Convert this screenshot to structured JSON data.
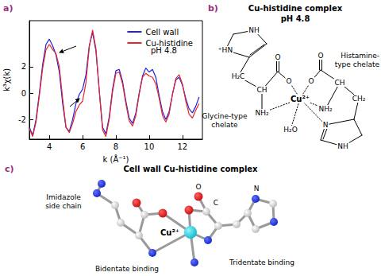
{
  "chart_data": {
    "type": "line",
    "panel_label": "a)",
    "xlabel": "k (Å⁻¹)",
    "ylabel": "k³χ(k)",
    "x": [
      2.8,
      3.0,
      3.2,
      3.4,
      3.6,
      3.8,
      4.0,
      4.2,
      4.4,
      4.6,
      4.8,
      5.0,
      5.2,
      5.4,
      5.6,
      5.8,
      6.0,
      6.2,
      6.4,
      6.6,
      6.8,
      7.0,
      7.2,
      7.4,
      7.6,
      7.8,
      8.0,
      8.2,
      8.4,
      8.6,
      8.8,
      9.0,
      9.2,
      9.4,
      9.6,
      9.8,
      10.0,
      10.2,
      10.4,
      10.6,
      10.8,
      11.0,
      11.2,
      11.4,
      11.6,
      11.8,
      12.0,
      12.2,
      12.4,
      12.6,
      12.8,
      13.0
    ],
    "series": [
      {
        "name": "Cell wall",
        "color": "#2222dd",
        "values": [
          -2.6,
          -3.2,
          -2.0,
          0.0,
          2.2,
          3.7,
          4.1,
          3.6,
          2.9,
          1.6,
          -0.8,
          -2.6,
          -2.9,
          -2.0,
          -0.8,
          -0.1,
          0.3,
          1.4,
          3.6,
          4.6,
          3.2,
          0.2,
          -2.6,
          -3.1,
          -1.8,
          0.3,
          1.7,
          1.8,
          0.9,
          -0.6,
          -1.9,
          -2.3,
          -1.5,
          0.0,
          1.3,
          1.9,
          1.6,
          1.8,
          1.2,
          -0.2,
          -1.4,
          -2.0,
          -1.4,
          -0.1,
          1.0,
          1.2,
          0.6,
          -0.4,
          -1.2,
          -1.5,
          -1.0,
          -0.3
        ]
      },
      {
        "name": "Cu-histidine",
        "color": "#e8252a",
        "values": [
          -2.7,
          -3.3,
          -2.2,
          -0.2,
          1.9,
          3.3,
          3.7,
          3.3,
          3.0,
          2.0,
          -0.4,
          -2.6,
          -3.0,
          -2.3,
          -1.4,
          -0.9,
          -0.6,
          0.8,
          3.5,
          4.8,
          3.4,
          0.2,
          -2.8,
          -3.3,
          -2.0,
          0.1,
          1.5,
          1.6,
          0.7,
          -0.8,
          -2.1,
          -2.5,
          -1.7,
          -0.1,
          1.2,
          1.5,
          1.3,
          1.2,
          0.7,
          -0.4,
          -1.7,
          -2.2,
          -1.6,
          -0.1,
          1.1,
          1.4,
          0.7,
          -0.6,
          -1.6,
          -1.9,
          -1.3,
          -0.8
        ]
      }
    ],
    "annotations": [
      "pH 4.8"
    ],
    "xlim": [
      2.8,
      13.2
    ],
    "xticks": [
      4,
      6,
      8,
      10,
      12
    ],
    "ylim": [
      -3.5,
      5.5
    ],
    "yticks": [
      -2,
      0,
      2
    ],
    "grid": false,
    "legend": "upper right"
  },
  "diagrams": [
    {
      "label": "b)",
      "title": "Cu-histidine complex",
      "subtitle": "pH 4.8",
      "texts": {
        "nh_top": "NH",
        "hn_top": "⁺HN",
        "h2c": "H₂C",
        "ch_left": "CH",
        "o_left_top": "O",
        "o_left": "O",
        "cu": "Cu²⁺",
        "o_right": "O",
        "o_right_top": "O",
        "ch_right": "CH",
        "nh2_left": "NH₂",
        "nh2_right": "NH₂",
        "ch2": "CH₂",
        "n_ring": "N",
        "nh_ring": "NH",
        "h2o": "H₂O"
      },
      "notes": {
        "glycine": [
          "Glycine-type",
          "chelate"
        ],
        "histamine": [
          "Histamine-",
          "type chelate"
        ]
      }
    },
    {
      "label": "c)",
      "title": "Cell wall Cu-histidine complex",
      "texts": {
        "imidazole": [
          "Imidazole",
          "side chain"
        ],
        "o_label": "O",
        "c_label": "C",
        "n_label": "N",
        "cu": "Cu²⁺",
        "bidentate": "Bidentate binding",
        "tridentate": "Tridentate binding"
      }
    }
  ]
}
